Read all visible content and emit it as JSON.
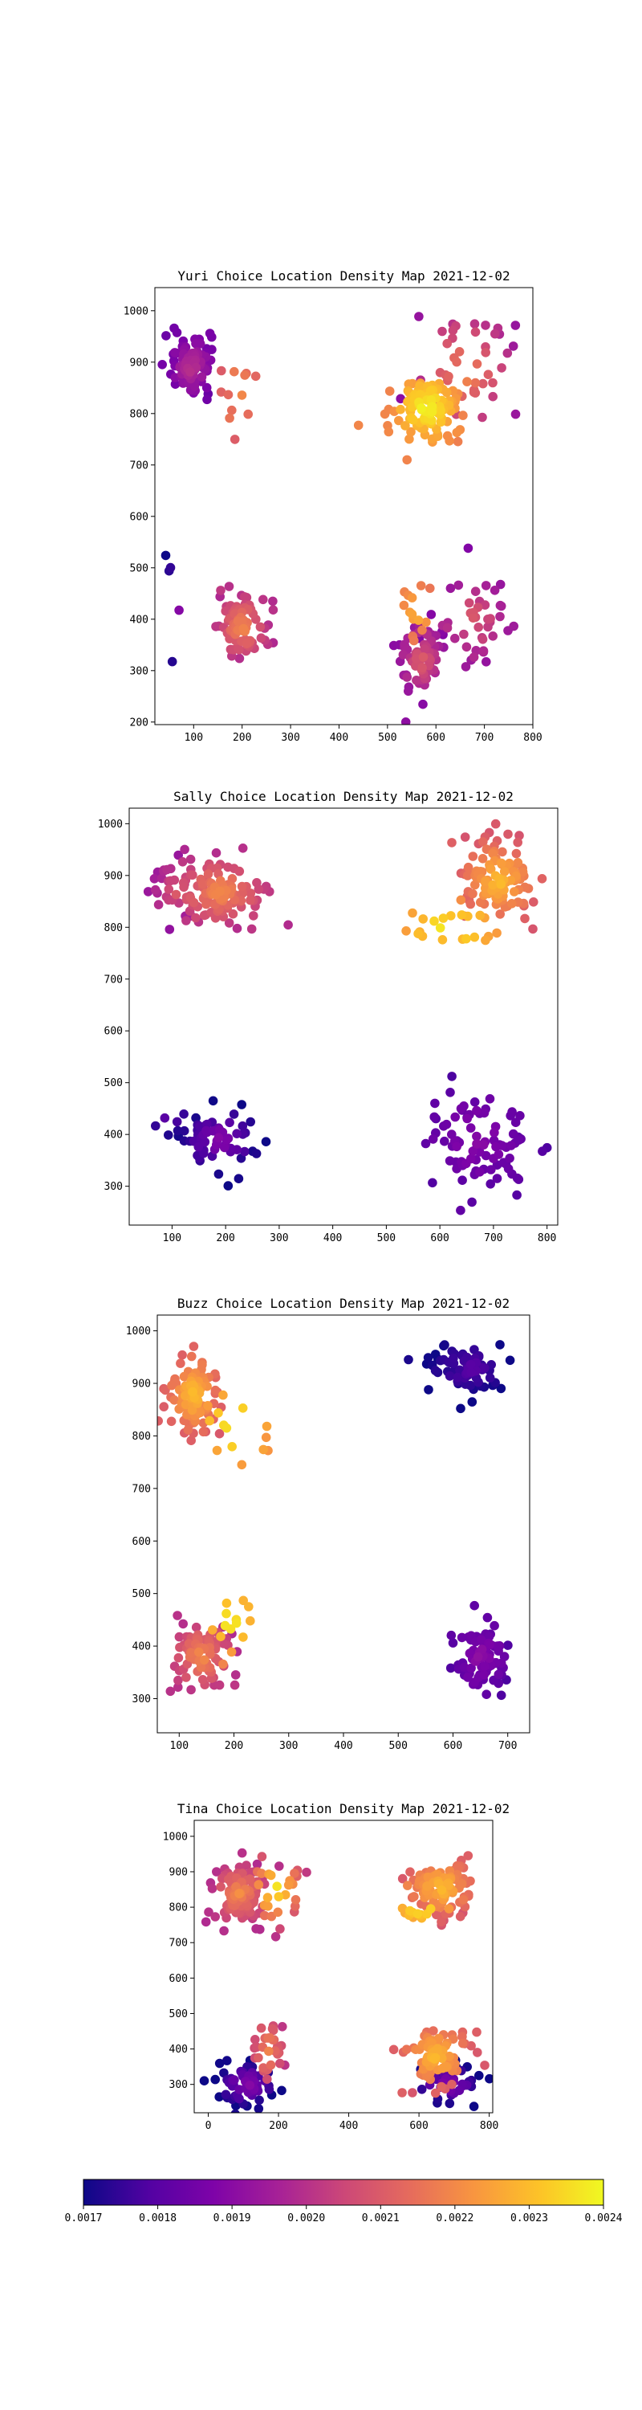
{
  "colorbar": {
    "colormap": "plasma",
    "min": 0.0017,
    "max": 0.0024,
    "ticks": [
      "0.0017",
      "0.0018",
      "0.0019",
      "0.0020",
      "0.0021",
      "0.0022",
      "0.0023",
      "0.0024"
    ]
  },
  "chart_data": [
    {
      "type": "scatter",
      "title": "Yuri Choice Location Density Map 2021-12-02",
      "xlim": [
        20,
        800
      ],
      "ylim": [
        195,
        1045
      ],
      "xticks": [
        "100",
        "200",
        "300",
        "400",
        "500",
        "600",
        "700",
        "800"
      ],
      "yticks": [
        "200",
        "300",
        "400",
        "500",
        "600",
        "700",
        "800",
        "900",
        "1000"
      ],
      "clusters": [
        {
          "cx": 95,
          "cy": 890,
          "sx": 22,
          "sy": 32,
          "n": 90,
          "dmin": 0.00185,
          "dmax": 0.002
        },
        {
          "cx": 195,
          "cy": 840,
          "sx": 20,
          "sy": 55,
          "n": 12,
          "dmin": 0.0021,
          "dmax": 0.0022
        },
        {
          "cx": 580,
          "cy": 810,
          "sx": 35,
          "sy": 35,
          "n": 110,
          "dmin": 0.0022,
          "dmax": 0.0024
        },
        {
          "cx": 660,
          "cy": 880,
          "sx": 60,
          "sy": 75,
          "n": 45,
          "dmin": 0.0019,
          "dmax": 0.0022
        },
        {
          "cx": 200,
          "cy": 385,
          "sx": 25,
          "sy": 30,
          "n": 85,
          "dmin": 0.002,
          "dmax": 0.0022
        },
        {
          "cx": 70,
          "cy": 420,
          "sx": 20,
          "sy": 60,
          "n": 5,
          "dmin": 0.0017,
          "dmax": 0.0019
        },
        {
          "cx": 570,
          "cy": 320,
          "sx": 25,
          "sy": 40,
          "n": 70,
          "dmin": 0.0019,
          "dmax": 0.0021
        },
        {
          "cx": 680,
          "cy": 400,
          "sx": 45,
          "sy": 50,
          "n": 45,
          "dmin": 0.0019,
          "dmax": 0.0021
        },
        {
          "cx": 560,
          "cy": 420,
          "sx": 25,
          "sy": 40,
          "n": 14,
          "dmin": 0.0021,
          "dmax": 0.0023
        }
      ]
    },
    {
      "type": "scatter",
      "title": "Sally Choice Location Density Map 2021-12-02",
      "xlim": [
        20,
        820
      ],
      "ylim": [
        225,
        1030
      ],
      "xticks": [
        "100",
        "200",
        "300",
        "400",
        "500",
        "600",
        "700",
        "800"
      ],
      "yticks": [
        "300",
        "400",
        "500",
        "600",
        "700",
        "800",
        "900",
        "1000"
      ],
      "clusters": [
        {
          "cx": 190,
          "cy": 870,
          "sx": 45,
          "sy": 35,
          "n": 110,
          "dmin": 0.002,
          "dmax": 0.0022
        },
        {
          "cx": 110,
          "cy": 870,
          "sx": 30,
          "sy": 35,
          "n": 25,
          "dmin": 0.0019,
          "dmax": 0.0021
        },
        {
          "cx": 710,
          "cy": 890,
          "sx": 35,
          "sy": 40,
          "n": 110,
          "dmin": 0.0021,
          "dmax": 0.0023
        },
        {
          "cx": 620,
          "cy": 800,
          "sx": 50,
          "sy": 25,
          "n": 22,
          "dmin": 0.0022,
          "dmax": 0.0024
        },
        {
          "cx": 190,
          "cy": 390,
          "sx": 35,
          "sy": 30,
          "n": 60,
          "dmin": 0.0017,
          "dmax": 0.0019
        },
        {
          "cx": 90,
          "cy": 430,
          "sx": 25,
          "sy": 25,
          "n": 6,
          "dmin": 0.0017,
          "dmax": 0.0018
        },
        {
          "cx": 670,
          "cy": 390,
          "sx": 50,
          "sy": 50,
          "n": 90,
          "dmin": 0.0018,
          "dmax": 0.0019
        }
      ]
    },
    {
      "type": "scatter",
      "title": "Buzz Choice Location Density Map 2021-12-02",
      "xlim": [
        60,
        740
      ],
      "ylim": [
        235,
        1030
      ],
      "xticks": [
        "100",
        "200",
        "300",
        "400",
        "500",
        "600",
        "700"
      ],
      "yticks": [
        "300",
        "400",
        "500",
        "600",
        "700",
        "800",
        "900",
        "1000"
      ],
      "clusters": [
        {
          "cx": 125,
          "cy": 880,
          "sx": 25,
          "sy": 40,
          "n": 90,
          "dmin": 0.0021,
          "dmax": 0.0023
        },
        {
          "cx": 200,
          "cy": 820,
          "sx": 35,
          "sy": 45,
          "n": 14,
          "dmin": 0.0022,
          "dmax": 0.0024
        },
        {
          "cx": 630,
          "cy": 930,
          "sx": 35,
          "sy": 25,
          "n": 70,
          "dmin": 0.0017,
          "dmax": 0.0018
        },
        {
          "cx": 140,
          "cy": 380,
          "sx": 30,
          "sy": 35,
          "n": 80,
          "dmin": 0.002,
          "dmax": 0.0022
        },
        {
          "cx": 195,
          "cy": 450,
          "sx": 25,
          "sy": 35,
          "n": 14,
          "dmin": 0.0022,
          "dmax": 0.0024
        },
        {
          "cx": 650,
          "cy": 380,
          "sx": 25,
          "sy": 35,
          "n": 80,
          "dmin": 0.0018,
          "dmax": 0.0019
        }
      ]
    },
    {
      "type": "scatter",
      "title": "Tina Choice Location Density Map 2021-12-02",
      "xlim": [
        -40,
        810
      ],
      "ylim": [
        220,
        1045
      ],
      "xticks": [
        "0",
        "200",
        "400",
        "600",
        "800"
      ],
      "yticks": [
        "300",
        "400",
        "500",
        "600",
        "700",
        "800",
        "900",
        "1000"
      ],
      "clusters": [
        {
          "cx": 90,
          "cy": 840,
          "sx": 40,
          "sy": 45,
          "n": 90,
          "dmin": 0.002,
          "dmax": 0.0022
        },
        {
          "cx": 190,
          "cy": 850,
          "sx": 45,
          "sy": 60,
          "n": 30,
          "dmin": 0.002,
          "dmax": 0.0024
        },
        {
          "cx": 660,
          "cy": 855,
          "sx": 50,
          "sy": 40,
          "n": 100,
          "dmin": 0.0021,
          "dmax": 0.0023
        },
        {
          "cx": 610,
          "cy": 800,
          "sx": 40,
          "sy": 25,
          "n": 14,
          "dmin": 0.0022,
          "dmax": 0.0024
        },
        {
          "cx": 110,
          "cy": 300,
          "sx": 40,
          "sy": 30,
          "n": 60,
          "dmin": 0.0017,
          "dmax": 0.0019
        },
        {
          "cx": 170,
          "cy": 400,
          "sx": 25,
          "sy": 55,
          "n": 30,
          "dmin": 0.002,
          "dmax": 0.0022
        },
        {
          "cx": 650,
          "cy": 380,
          "sx": 50,
          "sy": 45,
          "n": 80,
          "dmin": 0.0021,
          "dmax": 0.0023
        },
        {
          "cx": 680,
          "cy": 300,
          "sx": 45,
          "sy": 25,
          "n": 40,
          "dmin": 0.0017,
          "dmax": 0.0019
        }
      ]
    }
  ]
}
